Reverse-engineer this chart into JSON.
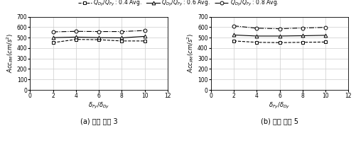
{
  "x": [
    2,
    4,
    6,
    8,
    10
  ],
  "subplot_a": {
    "label": "(a) 주기 비율 3",
    "series": [
      {
        "label": "$Q_{Dy}/Q_{Fy}$ : 0.4 Avg.",
        "y": [
          452,
          483,
          480,
          468,
          468
        ],
        "marker": "s",
        "linestyle": "--",
        "color": "black"
      },
      {
        "label": "$Q_{Dy}/Q_{Fy}$ : 0.6 Avg.",
        "y": [
          500,
          505,
          500,
          498,
          512
        ],
        "marker": "^",
        "linestyle": "-",
        "color": "black"
      },
      {
        "label": "$Q_{Dy}/Q_{Fy}$ : 0.8 Avg.",
        "y": [
          555,
          560,
          558,
          558,
          568
        ],
        "marker": "o",
        "linestyle": "-.",
        "color": "black"
      }
    ]
  },
  "subplot_b": {
    "label": "(b) 주기 비율 5",
    "series": [
      {
        "label": "$Q_{Dy}/Q_{Fy}$ : 0.4 Avg.",
        "y": [
          468,
          455,
          452,
          455,
          458
        ],
        "marker": "s",
        "linestyle": "--",
        "color": "black"
      },
      {
        "label": "$Q_{Dy}/Q_{Fy}$ : 0.6 Avg.",
        "y": [
          525,
          515,
          515,
          518,
          522
        ],
        "marker": "^",
        "linestyle": "-",
        "color": "black"
      },
      {
        "label": "$Q_{Dy}/Q_{Fy}$ : 0.8 Avg.",
        "y": [
          612,
          590,
          585,
          592,
          598
        ],
        "marker": "o",
        "linestyle": "-.",
        "color": "black"
      }
    ]
  },
  "ylim": [
    0,
    700
  ],
  "yticks": [
    0,
    100,
    200,
    300,
    400,
    500,
    600,
    700
  ],
  "xlim": [
    0,
    12
  ],
  "xticks": [
    0,
    2,
    4,
    6,
    8,
    10,
    12
  ],
  "ylabel": "$Acc_{PM}(cm/s^2)$",
  "xlabel": "$\\delta_{Fy}/\\delta_{Dy}$",
  "background_color": "#ffffff",
  "grid_color": "#cccccc"
}
